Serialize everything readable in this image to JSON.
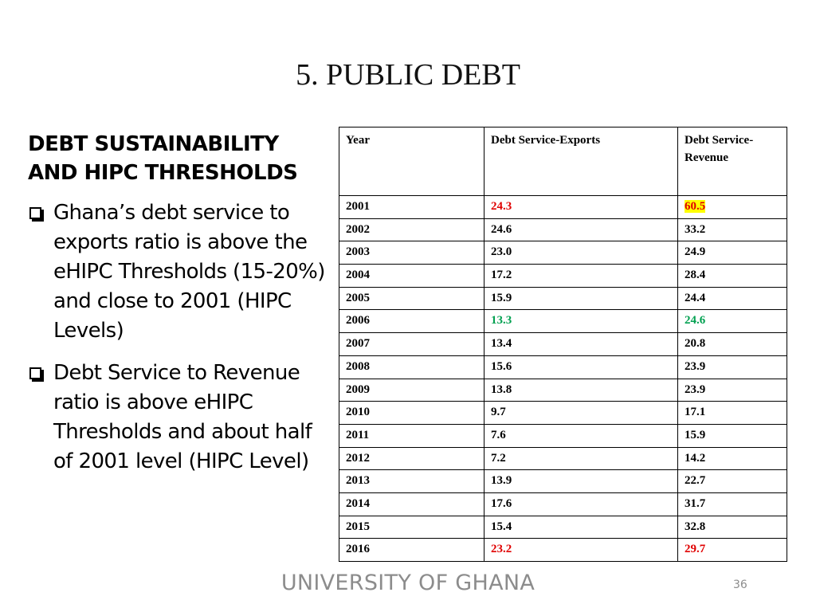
{
  "slide": {
    "title": "5. PUBLIC DEBT",
    "heading": "DEBT SUSTAINABILITY AND HIPC THRESHOLDS",
    "bullets": [
      "Ghana’s debt service to exports ratio is above the eHIPC Thresholds (15-20%) and close to 2001 (HIPC Levels)",
      "Debt Service to Revenue ratio is above eHIPC Thresholds and about half of 2001 level (HIPC Level)"
    ],
    "footer": "UNIVERSITY OF GHANA",
    "page_number": "36"
  },
  "table": {
    "headers": [
      "Year",
      "Debt Service-Exports",
      "Debt Service-Revenue"
    ],
    "rows": [
      [
        "2001",
        "24.3",
        "60.5"
      ],
      [
        "2002",
        "24.6",
        "33.2"
      ],
      [
        "2003",
        "23.0",
        "24.9"
      ],
      [
        "2004",
        "17.2",
        "28.4"
      ],
      [
        "2005",
        "15.9",
        "24.4"
      ],
      [
        "2006",
        "13.3",
        "24.6"
      ],
      [
        "2007",
        "13.4",
        "20.8"
      ],
      [
        "2008",
        "15.6",
        "23.9"
      ],
      [
        "2009",
        "13.8",
        "23.9"
      ],
      [
        "2010",
        "9.7",
        "17.1"
      ],
      [
        "2011",
        "7.6",
        "15.9"
      ],
      [
        "2012",
        "7.2",
        "14.2"
      ],
      [
        "2013",
        "13.9",
        "22.7"
      ],
      [
        "2014",
        "17.6",
        "31.7"
      ],
      [
        "2015",
        "15.4",
        "32.8"
      ],
      [
        "2016",
        "23.2",
        "29.7"
      ]
    ],
    "colors": {
      "red": "#e00000",
      "green": "#00a050",
      "highlight": "#ffff00"
    }
  }
}
